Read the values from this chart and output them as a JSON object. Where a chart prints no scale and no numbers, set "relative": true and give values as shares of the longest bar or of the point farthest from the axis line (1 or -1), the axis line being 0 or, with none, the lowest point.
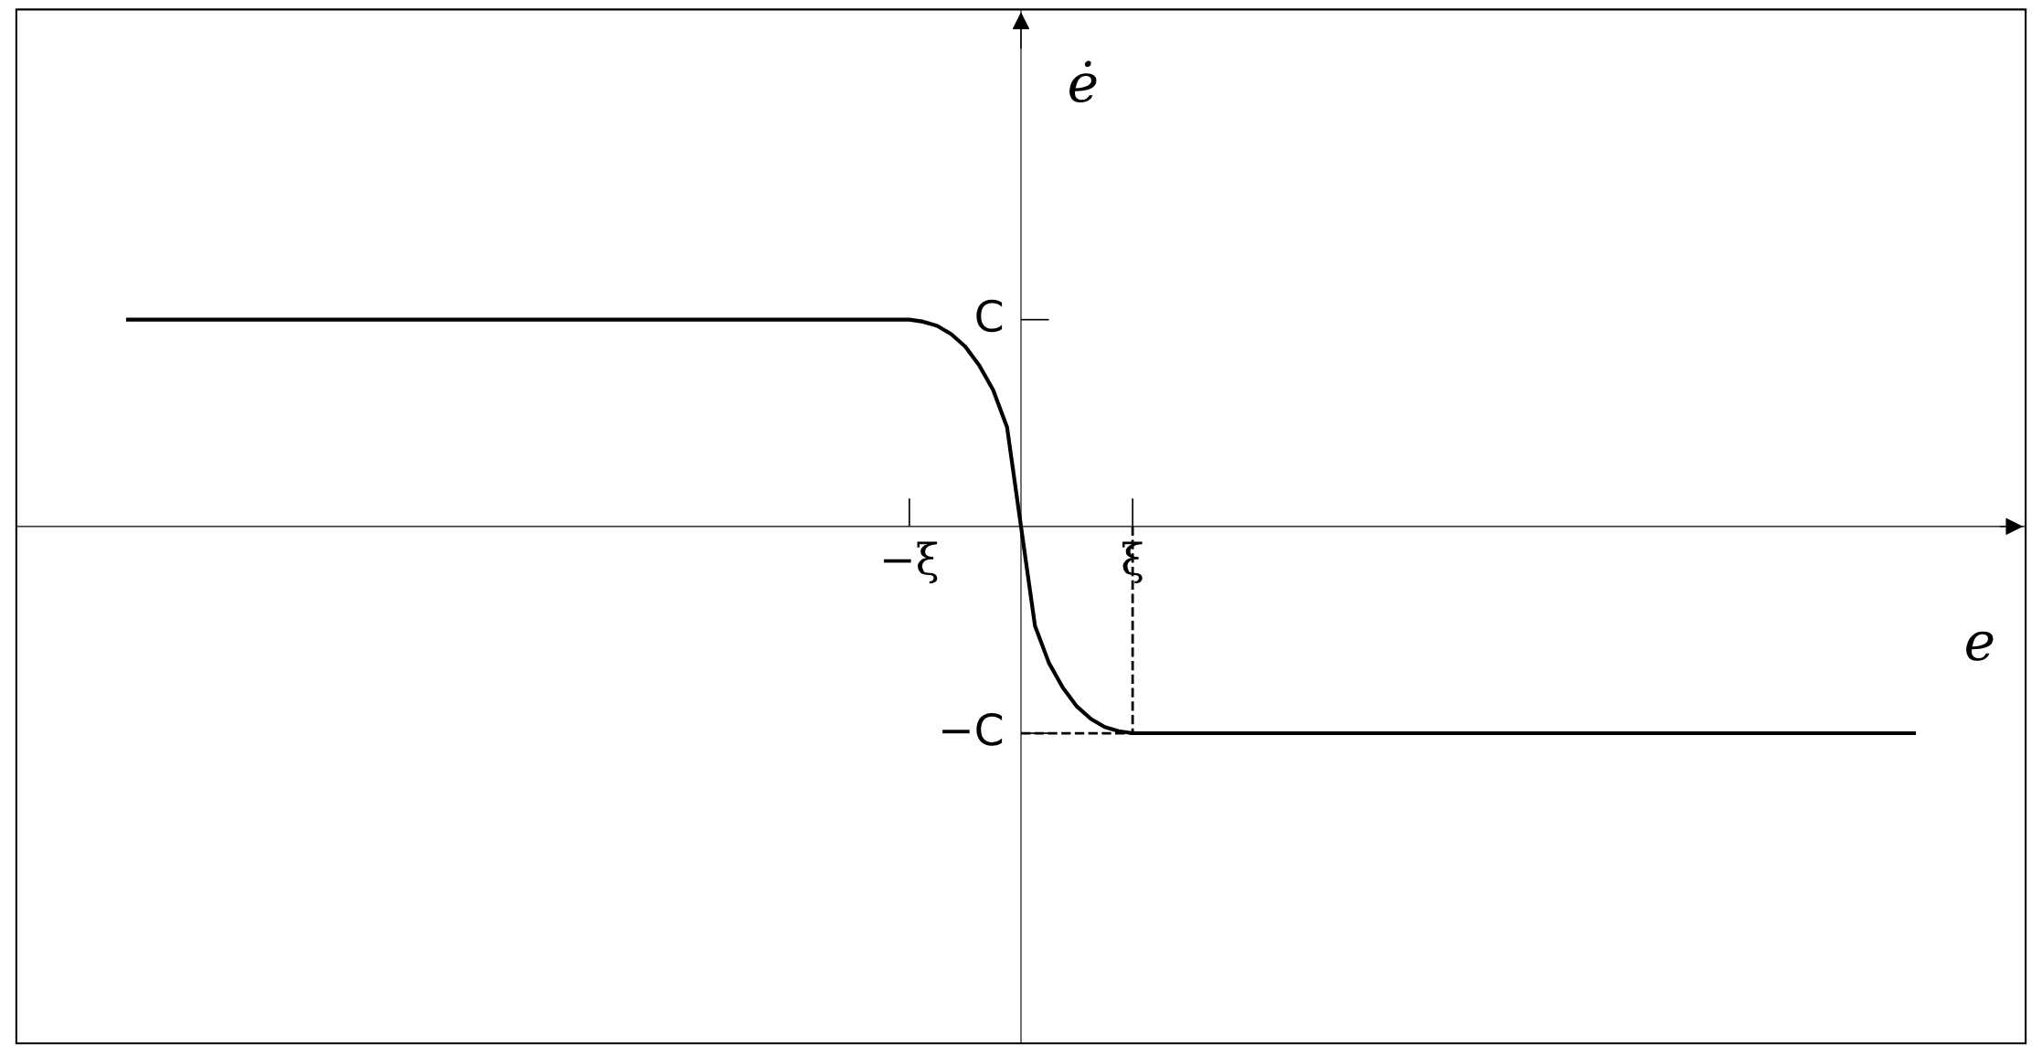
{
  "chart_data": {
    "type": "line",
    "xlabel": "e",
    "ylabel": "ė",
    "relative": true,
    "categories": [
      null,
      null,
      null,
      null,
      null,
      null,
      null,
      null,
      null,
      null,
      null,
      null,
      null,
      null,
      null,
      null,
      null,
      null,
      null,
      null,
      null,
      null,
      null,
      null,
      null,
      null,
      null,
      null,
      null,
      null,
      null,
      null,
      null,
      null,
      null,
      null,
      null,
      null,
      null,
      null,
      null,
      null,
      null,
      null,
      null,
      null,
      null,
      null,
      null,
      null,
      null,
      null,
      null,
      null,
      null,
      null,
      null,
      null,
      null,
      null,
      null,
      null,
      null,
      null,
      null,
      null,
      null,
      null,
      null,
      null,
      null,
      null,
      null,
      null,
      null,
      null,
      null,
      null,
      null,
      null,
      null,
      null,
      null,
      null,
      null,
      null,
      null,
      null,
      null,
      null,
      null,
      null,
      null,
      null,
      null,
      null,
      null,
      null,
      null,
      null,
      null,
      null,
      null,
      null,
      null,
      null,
      null,
      null,
      null,
      null,
      null,
      null,
      null,
      null,
      null,
      null,
      null,
      null,
      null,
      null,
      null,
      null,
      null,
      null,
      null,
      null,
      null,
      null,
      null
    ],
    "series": [
      {
        "color": "#000000",
        "line_style": "solid",
        "values": [
          1,
          1,
          1,
          1,
          1,
          1,
          1,
          1,
          1,
          1,
          1,
          1,
          1,
          1,
          1,
          1,
          1,
          1,
          1,
          1,
          1,
          1,
          1,
          1,
          1,
          1,
          1,
          1,
          1,
          1,
          1,
          1,
          1,
          1,
          1,
          1,
          1,
          1,
          1,
          1,
          1,
          1,
          1,
          1,
          1,
          1,
          1,
          1,
          1,
          1,
          1,
          1,
          1,
          1,
          1,
          1,
          1,
          0.99,
          0.97,
          0.93,
          0.87,
          0.78,
          0.66,
          0.48,
          0,
          -0.48,
          -0.66,
          -0.78,
          -0.87,
          -0.93,
          -0.97,
          -0.99,
          -1,
          -1,
          -1,
          -1,
          -1,
          -1,
          -1,
          -1,
          -1,
          -1,
          -1,
          -1,
          -1,
          -1,
          -1,
          -1,
          -1,
          -1,
          -1,
          -1,
          -1,
          -1,
          -1,
          -1,
          -1,
          -1,
          -1,
          -1,
          -1,
          -1,
          -1,
          -1,
          -1,
          -1,
          -1,
          -1,
          -1,
          -1,
          -1,
          -1,
          -1,
          -1,
          -1,
          -1,
          -1,
          -1,
          -1,
          -1,
          -1,
          -1,
          -1,
          -1,
          -1,
          -1,
          -1,
          -1,
          -1
        ]
      }
    ],
    "annotations": [
      "C",
      "−C",
      "−ξ",
      "ξ"
    ],
    "grid": false,
    "legend": false,
    "marker": "none"
  }
}
